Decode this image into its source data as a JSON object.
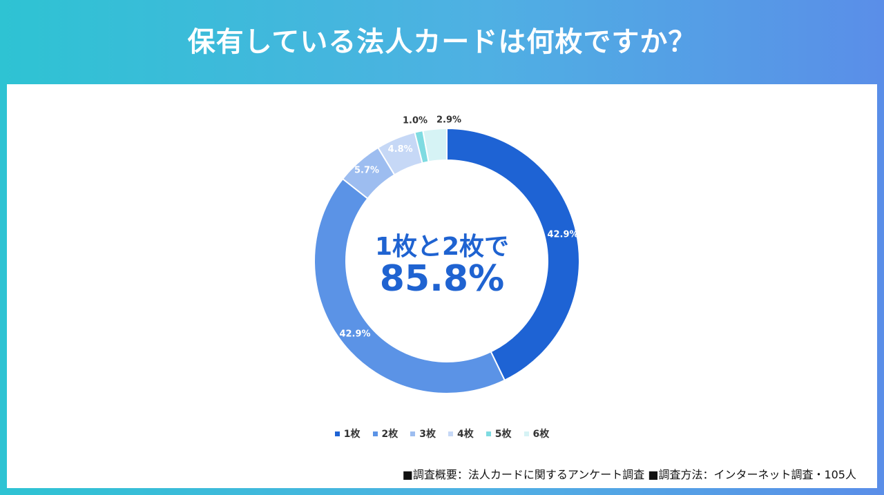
{
  "title": "保有している法人カードは何枚ですか？",
  "center": {
    "line1": "1枚と2枚で",
    "line2": "85.8%"
  },
  "footnote": "■調査概要：法人カードに関するアンケート調査 ■調査方法：インターネット調査・105人",
  "chart_data": {
    "type": "pie",
    "variant": "donut",
    "categories": [
      "1枚",
      "2枚",
      "3枚",
      "4枚",
      "5枚",
      "6枚"
    ],
    "values": [
      42.9,
      42.9,
      5.7,
      4.8,
      1.0,
      2.9
    ],
    "labels": [
      "42.9%",
      "42.9%",
      "5.7%",
      "4.8%",
      "1.0%",
      "2.9%"
    ],
    "colors": [
      "#1e63d4",
      "#5b93e6",
      "#9dbdf0",
      "#c6d8f6",
      "#7fdbe1",
      "#d6f3f5"
    ],
    "legend_position": "bottom"
  }
}
